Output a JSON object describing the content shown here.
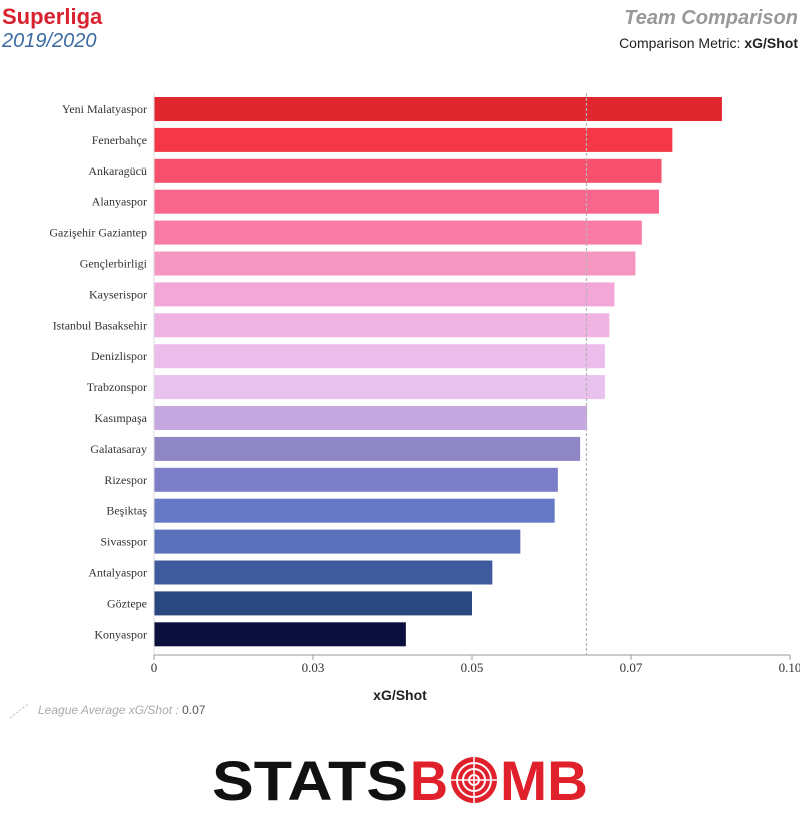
{
  "header": {
    "league": "Superliga",
    "season": "2019/2020",
    "title": "Team Comparison",
    "metric_prefix": "Comparison Metric: ",
    "metric_name": "xG/Shot"
  },
  "legend": {
    "label": "League Average xG/Shot : ",
    "value": "0.07"
  },
  "logo": {
    "part1": "STATS",
    "part2": "B",
    "part3": "MB",
    "colors": {
      "dark": "#111111",
      "red": "#e0202a"
    }
  },
  "chart_data": {
    "type": "bar",
    "orientation": "horizontal",
    "xlabel": "xG/Shot",
    "xlim": [
      0,
      0.1
    ],
    "x_tick_values": [
      0,
      0.025,
      0.05,
      0.075,
      0.1
    ],
    "x_tick_labels": [
      "0",
      "0.03",
      "0.05",
      "0.07",
      "0.10"
    ],
    "league_average": 0.068,
    "categories": [
      "Yeni Malatyaspor",
      "Fenerbahçe",
      "Ankaragücü",
      "Alanyaspor",
      "Gazişehir Gaziantep",
      "Gençlerbirligi",
      "Kayserispor",
      "Istanbul Basaksehir",
      "Denizlispor",
      "Trabzonspor",
      "Kasımpaşa",
      "Galatasaray",
      "Rizespor",
      "Beşiktaş",
      "Sivasspor",
      "Antalyaspor",
      "Göztepe",
      "Konyaspor"
    ],
    "values": [
      0.0893,
      0.0815,
      0.0798,
      0.0794,
      0.0767,
      0.0757,
      0.0724,
      0.0716,
      0.0709,
      0.0709,
      0.0681,
      0.067,
      0.0635,
      0.063,
      0.0576,
      0.0532,
      0.05,
      0.0396
    ],
    "colors": [
      "#e0262f",
      "#f53847",
      "#f7506d",
      "#f8658d",
      "#f87ba6",
      "#f597c1",
      "#f2a7d8",
      "#efb4e4",
      "#ecbdea",
      "#e8c2ec",
      "#c5a8e0",
      "#8f86c6",
      "#7c7fc8",
      "#6779c4",
      "#5b71bc",
      "#3f5b9e",
      "#2a4880",
      "#0a0f3d"
    ],
    "grid": false
  }
}
